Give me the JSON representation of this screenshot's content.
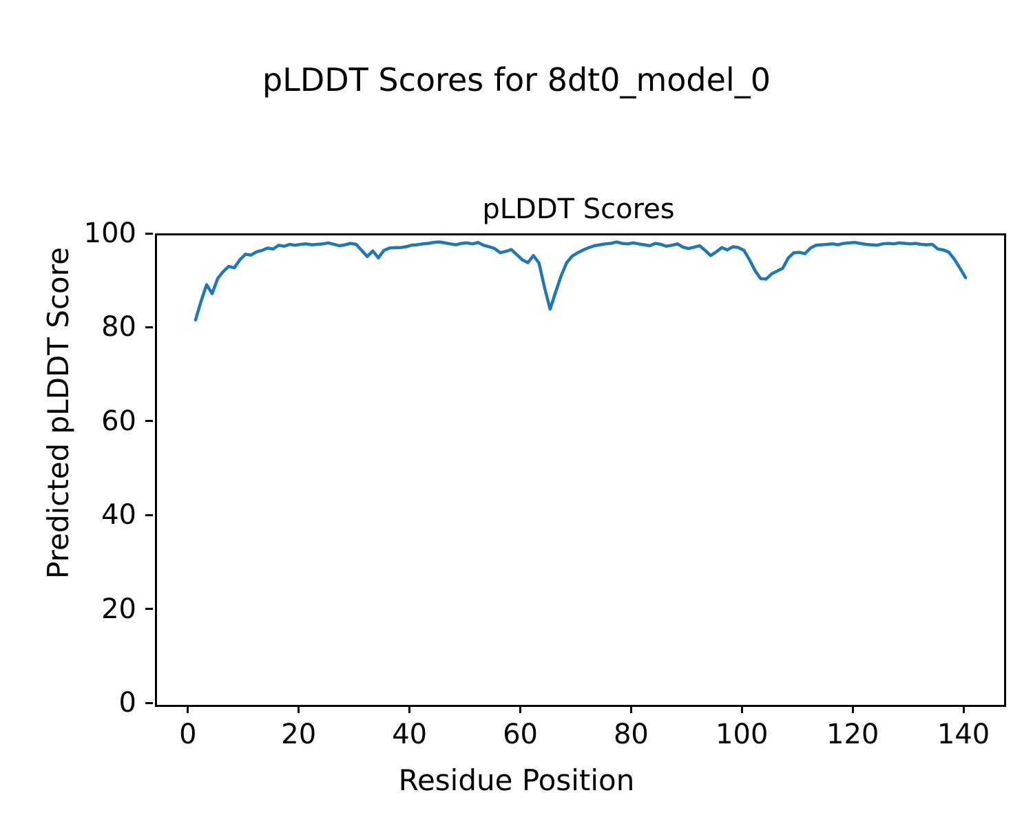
{
  "chart_data": {
    "type": "line",
    "suptitle": "pLDDT Scores for 8dt0_model_0",
    "title": "pLDDT Scores",
    "xlabel": "Residue Position",
    "ylabel": "Predicted pLDDT Score",
    "grid": false,
    "legend_position": "none",
    "line_color": "#1f77b4",
    "line_width": 4.5,
    "xlim": [
      -5.95,
      146.95
    ],
    "ylim": [
      0,
      100
    ],
    "x_ticks": [
      0,
      20,
      40,
      60,
      80,
      100,
      120,
      140
    ],
    "y_ticks": [
      0,
      20,
      40,
      60,
      80,
      100
    ],
    "x": [
      1,
      2,
      3,
      4,
      5,
      6,
      7,
      8,
      9,
      10,
      11,
      12,
      13,
      14,
      15,
      16,
      17,
      18,
      19,
      20,
      21,
      22,
      23,
      24,
      25,
      26,
      27,
      28,
      29,
      30,
      31,
      32,
      33,
      34,
      35,
      36,
      37,
      38,
      39,
      40,
      41,
      42,
      43,
      44,
      45,
      46,
      47,
      48,
      49,
      50,
      51,
      52,
      53,
      54,
      55,
      56,
      57,
      58,
      59,
      60,
      61,
      62,
      63,
      64,
      65,
      66,
      67,
      68,
      69,
      70,
      71,
      72,
      73,
      74,
      75,
      76,
      77,
      78,
      79,
      80,
      81,
      82,
      83,
      84,
      85,
      86,
      87,
      88,
      89,
      90,
      91,
      92,
      93,
      94,
      95,
      96,
      97,
      98,
      99,
      100,
      101,
      102,
      103,
      104,
      105,
      106,
      107,
      108,
      109,
      110,
      111,
      112,
      113,
      114,
      115,
      116,
      117,
      118,
      119,
      120,
      121,
      122,
      123,
      124,
      125,
      126,
      127,
      128,
      129,
      130,
      131,
      132,
      133,
      134,
      135,
      136,
      137,
      138,
      139,
      140
    ],
    "values": [
      82.0,
      86.0,
      89.5,
      87.6,
      90.8,
      92.3,
      93.4,
      93.1,
      94.8,
      96.0,
      95.8,
      96.5,
      96.8,
      97.3,
      97.1,
      97.9,
      97.7,
      98.1,
      97.9,
      98.1,
      98.2,
      98.0,
      98.1,
      98.2,
      98.4,
      98.1,
      97.8,
      98.0,
      98.3,
      98.1,
      96.8,
      95.5,
      96.7,
      95.2,
      96.8,
      97.3,
      97.4,
      97.4,
      97.6,
      97.9,
      98.0,
      98.2,
      98.3,
      98.5,
      98.6,
      98.4,
      98.2,
      98.0,
      98.3,
      98.4,
      98.2,
      98.5,
      97.9,
      97.6,
      97.2,
      96.3,
      96.6,
      97.0,
      95.9,
      94.8,
      94.2,
      95.7,
      94.1,
      88.9,
      84.3,
      87.9,
      91.4,
      94.2,
      95.6,
      96.3,
      96.9,
      97.4,
      97.8,
      98.0,
      98.2,
      98.3,
      98.6,
      98.3,
      98.2,
      98.4,
      98.2,
      98.0,
      97.8,
      98.3,
      98.1,
      97.7,
      97.9,
      98.2,
      97.5,
      97.2,
      97.5,
      97.8,
      96.8,
      95.7,
      96.5,
      97.4,
      96.9,
      97.6,
      97.4,
      96.8,
      94.8,
      92.5,
      90.8,
      90.7,
      91.8,
      92.4,
      93.0,
      95.2,
      96.3,
      96.4,
      96.1,
      97.3,
      97.9,
      98.0,
      98.1,
      98.2,
      98.0,
      98.3,
      98.4,
      98.5,
      98.3,
      98.1,
      98.0,
      97.9,
      98.2,
      98.3,
      98.2,
      98.4,
      98.3,
      98.2,
      98.3,
      98.1,
      98.0,
      98.1,
      97.1,
      96.9,
      96.4,
      94.9,
      93.0,
      91.0
    ]
  }
}
